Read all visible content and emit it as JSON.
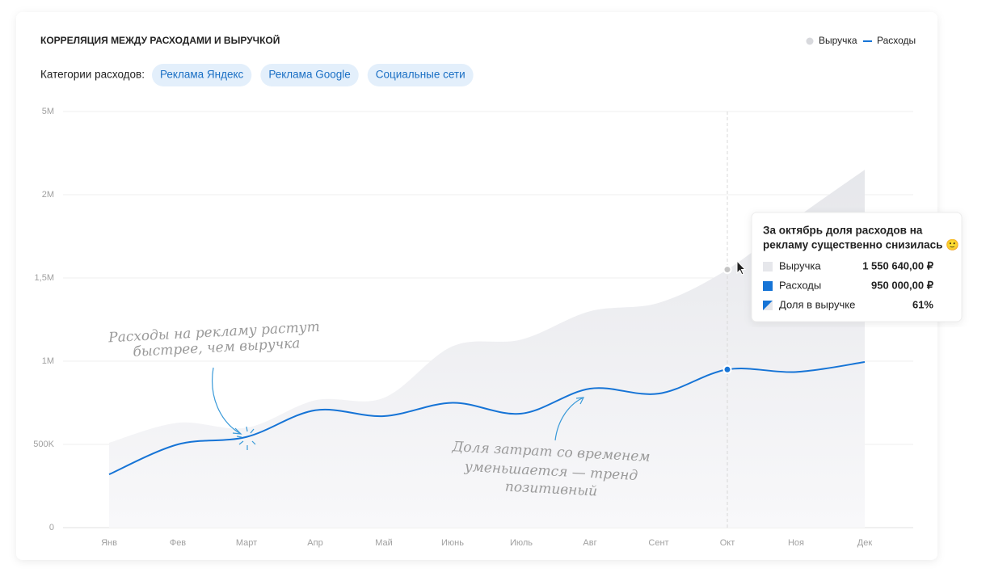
{
  "chart_data": {
    "type": "area-line",
    "title": "КОРРЕЛЯЦИЯ МЕЖДУ РАСХОДАМИ И ВЫРУЧКОЙ",
    "filter_label": "Категории расходов:",
    "filters": [
      "Реклама Яндекс",
      "Реклама Google",
      "Социальные сети"
    ],
    "categories": [
      "Янв",
      "Фев",
      "Март",
      "Апр",
      "Май",
      "Июнь",
      "Июль",
      "Авг",
      "Сент",
      "Окт",
      "Ноя",
      "Дек"
    ],
    "series": [
      {
        "name": "Выручка",
        "color": "#e6e7eb",
        "kind": "area",
        "values": [
          510000,
          630000,
          600000,
          765000,
          780000,
          1090000,
          1130000,
          1300000,
          1350000,
          1550640,
          1860000,
          2900000
        ]
      },
      {
        "name": "Расходы",
        "color": "#1674d6",
        "kind": "line",
        "values": [
          320000,
          500000,
          545000,
          705000,
          670000,
          750000,
          685000,
          835000,
          805000,
          950000,
          935000,
          995000
        ]
      }
    ],
    "ylim": [
      0,
      5000000
    ],
    "yticks": [
      0,
      {
        "value": 500000,
        "label": "500K"
      },
      {
        "value": 1000000,
        "label": "1M"
      },
      {
        "value": 1500000,
        "label": "1,5M"
      },
      {
        "value": 2000000,
        "label": "2M"
      },
      {
        "value": 5000000,
        "label": "5M"
      }
    ],
    "grid": true,
    "legend": "top-right",
    "highlight_index": 9,
    "tooltip": {
      "title": [
        "За октябрь доля расходов на",
        "рекламу существенно снизилась 🙂"
      ],
      "items": [
        {
          "label": "Выручка",
          "value": "1 550 640,00 ₽"
        },
        {
          "label": "Расходы",
          "value": "950 000,00 ₽"
        },
        {
          "label": "Доля в выручке",
          "value": "61%"
        }
      ]
    },
    "annotations": [
      [
        "Расходы на рекламу растут",
        "быстрее, чем выручка"
      ],
      [
        "Доля затрат со временем",
        "уменьшается — тренд",
        "позитивный"
      ]
    ]
  }
}
